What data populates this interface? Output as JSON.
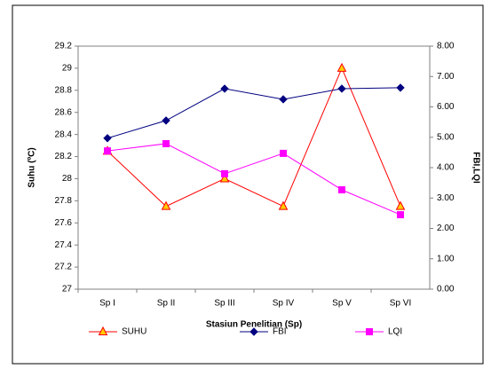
{
  "chart_data": {
    "type": "line",
    "x_label": "Stasiun Penelitian (Sp)",
    "y_label": "Suhu (ºC)",
    "y2_label": "FBI,LQI",
    "categories": [
      "Sp I",
      "Sp II",
      "Sp III",
      "Sp IV",
      "Sp V",
      "Sp VI"
    ],
    "series": [
      {
        "name": "SUHU",
        "color": "#ff0000",
        "marker": "triangle",
        "marker_fill": "#ffcc00",
        "axis": "y",
        "values": [
          28.25,
          27.75,
          28.0,
          27.75,
          29.0,
          27.75
        ]
      },
      {
        "name": "FBI",
        "color": "#000080",
        "marker": "diamond",
        "marker_fill": "#000080",
        "axis": "y2",
        "values": [
          4.97,
          5.55,
          6.6,
          6.25,
          6.6,
          6.63
        ]
      },
      {
        "name": "LQI",
        "color": "#ff00ff",
        "marker": "square",
        "marker_fill": "#ff00ff",
        "axis": "y2",
        "values": [
          4.55,
          4.79,
          3.8,
          4.47,
          3.27,
          2.45
        ]
      }
    ],
    "ylim": [
      27,
      29.2
    ],
    "yticks": [
      27,
      27.2,
      27.4,
      27.6,
      27.8,
      28,
      28.2,
      28.4,
      28.6,
      28.8,
      29,
      29.2
    ],
    "y2lim": [
      0,
      8
    ],
    "y2ticks": [
      {
        "value": 0,
        "label": "0.00"
      },
      {
        "value": 1,
        "label": "1.00"
      },
      {
        "value": 2,
        "label": "2.00"
      },
      {
        "value": 3,
        "label": "3.00"
      },
      {
        "value": 4,
        "label": "4.00"
      },
      {
        "value": 5,
        "label": "5.00"
      },
      {
        "value": 6,
        "label": "6.00"
      },
      {
        "value": 7,
        "label": "7.00"
      },
      {
        "value": 8,
        "label": "8.00"
      }
    ],
    "legend": "bottom"
  }
}
